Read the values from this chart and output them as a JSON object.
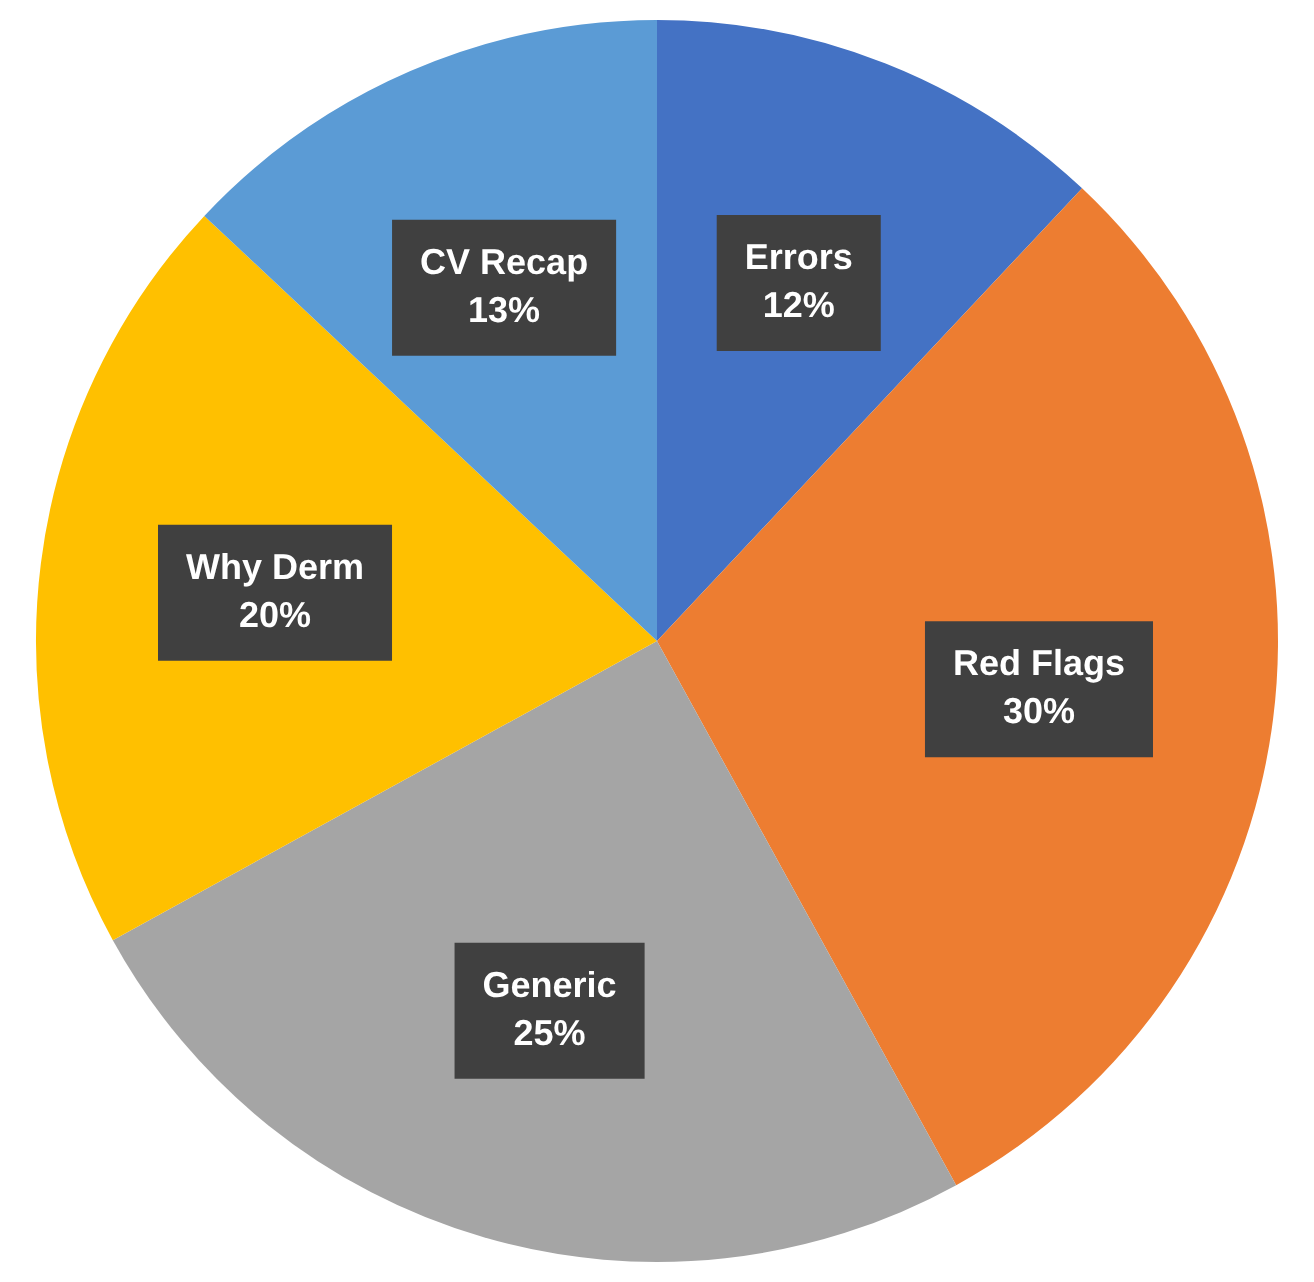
{
  "chart_data": {
    "type": "pie",
    "categories": [
      "Errors",
      "Red Flags",
      "Generic",
      "Why Derm",
      "CV Recap"
    ],
    "values": [
      12,
      30,
      25,
      20,
      13
    ],
    "value_labels": [
      "12%",
      "30%",
      "25%",
      "20%",
      "13%"
    ],
    "colors": [
      "#4472c4",
      "#ed7d31",
      "#a5a5a5",
      "#ffc000",
      "#5b9bd5"
    ],
    "legend": false
  }
}
